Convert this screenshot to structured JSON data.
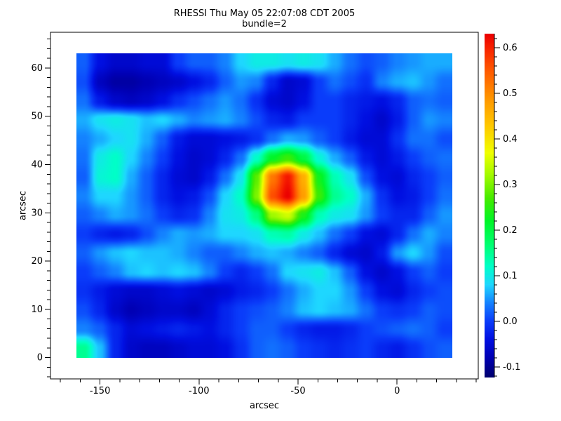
{
  "chart_data": {
    "type": "heatmap",
    "title": "RHESSI Thu May 05 22:07:08 CDT 2005",
    "subtitle": "bundle=2",
    "xlabel": "arcsec",
    "ylabel": "arcsec",
    "axis": {
      "x_range": [
        -175,
        41
      ],
      "y_range": [
        -4.4,
        67.4
      ],
      "x_major_ticks": [
        -150,
        -100,
        -50,
        0
      ],
      "x_minor_step": 10,
      "y_major_ticks": [
        0,
        10,
        20,
        30,
        40,
        50,
        60
      ],
      "y_minor_step": 2
    },
    "colorbar": {
      "range": [
        -0.123,
        0.631
      ],
      "major_ticks": [
        -0.1,
        0.0,
        0.1,
        0.2,
        0.3,
        0.4,
        0.5,
        0.6
      ],
      "labels": [
        "-0.1",
        "0.0",
        "0.1",
        "0.2",
        "0.3",
        "0.4",
        "0.5",
        "0.6"
      ],
      "minor_step": 0.02,
      "position": "right"
    },
    "x_extent": [
      -162,
      28
    ],
    "y_extent": [
      0,
      63
    ],
    "grid_cols": 24,
    "grid_rows": 16,
    "values": [
      [
        0.02,
        -0.04,
        -0.06,
        -0.06,
        -0.05,
        -0.05,
        0.0,
        0.02,
        0.02,
        0.04,
        0.08,
        0.1,
        0.1,
        0.09,
        0.1,
        0.09,
        0.06,
        0.03,
        0.01,
        0.02,
        0.04,
        0.05,
        0.06,
        0.06
      ],
      [
        0.01,
        -0.07,
        -0.09,
        -0.09,
        -0.08,
        -0.07,
        -0.06,
        -0.04,
        -0.02,
        0.02,
        0.05,
        0.04,
        -0.02,
        -0.06,
        -0.05,
        0.0,
        0.03,
        0.01,
        -0.01,
        0.04,
        0.06,
        0.07,
        0.05,
        0.03
      ],
      [
        0.03,
        -0.03,
        -0.06,
        -0.07,
        -0.06,
        -0.04,
        -0.01,
        0.01,
        0.03,
        0.05,
        0.03,
        -0.01,
        -0.05,
        -0.06,
        -0.04,
        0.0,
        0.0,
        -0.02,
        -0.03,
        -0.04,
        -0.02,
        0.02,
        0.03,
        0.02
      ],
      [
        0.06,
        0.09,
        0.1,
        0.09,
        0.07,
        0.08,
        0.06,
        0.04,
        0.05,
        0.06,
        0.04,
        0.01,
        -0.02,
        -0.03,
        0.0,
        0.0,
        0.0,
        -0.02,
        -0.04,
        -0.06,
        -0.03,
        0.02,
        0.05,
        0.04
      ],
      [
        0.04,
        0.06,
        0.08,
        0.09,
        0.06,
        0.02,
        -0.03,
        -0.05,
        -0.05,
        -0.04,
        -0.03,
        -0.01,
        0.03,
        0.06,
        0.05,
        0.02,
        0.0,
        -0.03,
        -0.05,
        -0.05,
        -0.01,
        0.03,
        0.03,
        0.01
      ],
      [
        0.03,
        0.1,
        0.12,
        0.08,
        0.04,
        0.0,
        -0.04,
        -0.06,
        -0.05,
        -0.02,
        0.03,
        0.12,
        0.22,
        0.26,
        0.2,
        0.11,
        0.06,
        0.02,
        -0.03,
        -0.05,
        -0.03,
        0.0,
        0.02,
        0.03
      ],
      [
        0.02,
        0.11,
        0.12,
        0.06,
        0.02,
        -0.02,
        -0.05,
        -0.06,
        -0.03,
        0.03,
        0.09,
        0.28,
        0.52,
        0.61,
        0.46,
        0.23,
        0.13,
        0.09,
        0.01,
        -0.04,
        -0.05,
        -0.02,
        0.0,
        0.02
      ],
      [
        0.04,
        0.08,
        0.08,
        0.05,
        0.02,
        -0.02,
        -0.04,
        -0.03,
        0.01,
        0.08,
        0.12,
        0.3,
        0.56,
        0.63,
        0.48,
        0.26,
        0.15,
        0.12,
        0.06,
        -0.01,
        -0.04,
        -0.03,
        0.0,
        0.03
      ],
      [
        0.02,
        0.04,
        0.06,
        0.05,
        0.03,
        0.0,
        -0.02,
        -0.01,
        0.04,
        0.09,
        0.1,
        0.16,
        0.32,
        0.35,
        0.24,
        0.13,
        0.1,
        0.09,
        0.05,
        0.0,
        -0.02,
        -0.02,
        0.02,
        0.05
      ],
      [
        0.0,
        -0.02,
        -0.03,
        -0.02,
        0.01,
        0.04,
        0.06,
        0.05,
        0.06,
        0.08,
        0.08,
        0.09,
        0.13,
        0.14,
        0.1,
        0.07,
        0.03,
        0.0,
        -0.04,
        -0.05,
        -0.02,
        0.03,
        0.06,
        0.04
      ],
      [
        0.02,
        0.05,
        0.07,
        0.08,
        0.07,
        0.07,
        0.06,
        0.04,
        0.02,
        0.02,
        0.04,
        0.06,
        0.07,
        0.06,
        0.04,
        0.02,
        -0.02,
        -0.05,
        -0.06,
        -0.03,
        0.05,
        0.08,
        0.05,
        0.01
      ],
      [
        0.0,
        0.02,
        0.04,
        0.07,
        0.08,
        0.07,
        0.08,
        0.07,
        0.04,
        0.0,
        -0.02,
        0.0,
        0.03,
        0.08,
        0.09,
        0.1,
        0.07,
        0.02,
        -0.04,
        -0.06,
        -0.04,
        0.0,
        0.02,
        0.0
      ],
      [
        -0.01,
        -0.03,
        -0.05,
        -0.06,
        -0.06,
        -0.05,
        -0.04,
        -0.05,
        -0.06,
        -0.05,
        -0.03,
        -0.02,
        0.0,
        0.03,
        0.06,
        0.08,
        0.08,
        0.05,
        0.0,
        -0.04,
        -0.05,
        -0.02,
        0.0,
        0.01
      ],
      [
        0.01,
        -0.02,
        -0.06,
        -0.08,
        -0.07,
        -0.06,
        -0.06,
        -0.07,
        -0.05,
        -0.02,
        0.0,
        0.01,
        0.02,
        0.04,
        0.07,
        0.08,
        0.07,
        0.06,
        0.03,
        0.0,
        -0.01,
        0.0,
        0.02,
        0.01
      ],
      [
        0.04,
        0.02,
        -0.02,
        -0.05,
        -0.04,
        -0.03,
        -0.02,
        -0.03,
        -0.04,
        -0.02,
        0.0,
        0.02,
        0.02,
        0.0,
        -0.02,
        -0.03,
        -0.03,
        -0.02,
        0.0,
        0.01,
        0.02,
        0.03,
        0.02,
        0.0
      ],
      [
        0.15,
        0.07,
        -0.02,
        -0.06,
        -0.07,
        -0.07,
        -0.06,
        -0.05,
        -0.05,
        -0.04,
        -0.01,
        0.02,
        0.03,
        0.02,
        0.0,
        -0.01,
        -0.02,
        -0.01,
        0.0,
        -0.02,
        -0.03,
        -0.01,
        0.01,
        0.02
      ]
    ],
    "colormap_stops": [
      [
        -0.123,
        0,
        0,
        110
      ],
      [
        -0.08,
        0,
        0,
        180
      ],
      [
        -0.04,
        0,
        15,
        225
      ],
      [
        0.0,
        10,
        60,
        250
      ],
      [
        0.04,
        20,
        130,
        255
      ],
      [
        0.08,
        30,
        215,
        255
      ],
      [
        0.12,
        0,
        255,
        200
      ],
      [
        0.17,
        0,
        255,
        110
      ],
      [
        0.22,
        0,
        245,
        40
      ],
      [
        0.27,
        70,
        235,
        0
      ],
      [
        0.32,
        160,
        250,
        0
      ],
      [
        0.37,
        240,
        255,
        0
      ],
      [
        0.43,
        255,
        200,
        0
      ],
      [
        0.49,
        255,
        150,
        0
      ],
      [
        0.55,
        255,
        90,
        0
      ],
      [
        0.6,
        248,
        35,
        0
      ],
      [
        0.631,
        235,
        0,
        0
      ]
    ]
  }
}
